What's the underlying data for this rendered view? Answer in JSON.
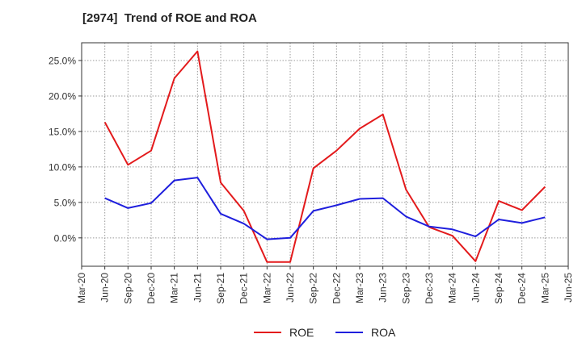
{
  "chart_data": {
    "type": "line",
    "title": "[2974]  Trend of ROE and ROA",
    "xlabel": "",
    "ylabel": "",
    "x_ticks": [
      "Mar-20",
      "Jun-20",
      "Sep-20",
      "Dec-20",
      "Mar-21",
      "Jun-21",
      "Sep-21",
      "Dec-21",
      "Mar-22",
      "Jun-22",
      "Sep-22",
      "Dec-22",
      "Mar-23",
      "Jun-23",
      "Sep-23",
      "Dec-23",
      "Mar-24",
      "Jun-24",
      "Sep-24",
      "Dec-24",
      "Mar-25",
      "Jun-25"
    ],
    "categories": [
      "Jun-20",
      "Sep-20",
      "Dec-20",
      "Mar-21",
      "Jun-21",
      "Sep-21",
      "Dec-21",
      "Mar-22",
      "Jun-22",
      "Sep-22",
      "Dec-22",
      "Mar-23",
      "Jun-23",
      "Sep-23",
      "Dec-23",
      "Mar-24",
      "Jun-24",
      "Sep-24",
      "Dec-24",
      "Mar-25"
    ],
    "y_ticks": [
      0,
      5,
      10,
      15,
      20,
      25
    ],
    "y_tick_labels": [
      "0.0%",
      "5.0%",
      "10.0%",
      "15.0%",
      "20.0%",
      "25.0%"
    ],
    "ylim": [
      -4,
      27.5
    ],
    "grid": true,
    "legend_position": "bottom",
    "series": [
      {
        "name": "ROE",
        "color": "#e31a1c",
        "values": [
          16.3,
          10.3,
          12.3,
          22.5,
          26.3,
          7.8,
          3.8,
          -3.4,
          -3.4,
          9.8,
          12.3,
          15.4,
          17.4,
          6.8,
          1.5,
          0.3,
          -3.3,
          5.2,
          3.9,
          7.2
        ]
      },
      {
        "name": "ROA",
        "color": "#1f1fdd",
        "values": [
          5.6,
          4.2,
          4.9,
          8.1,
          8.5,
          3.4,
          2.0,
          -0.2,
          0.0,
          3.8,
          4.6,
          5.5,
          5.6,
          3.0,
          1.6,
          1.2,
          0.2,
          2.6,
          2.1,
          2.9
        ]
      }
    ]
  }
}
